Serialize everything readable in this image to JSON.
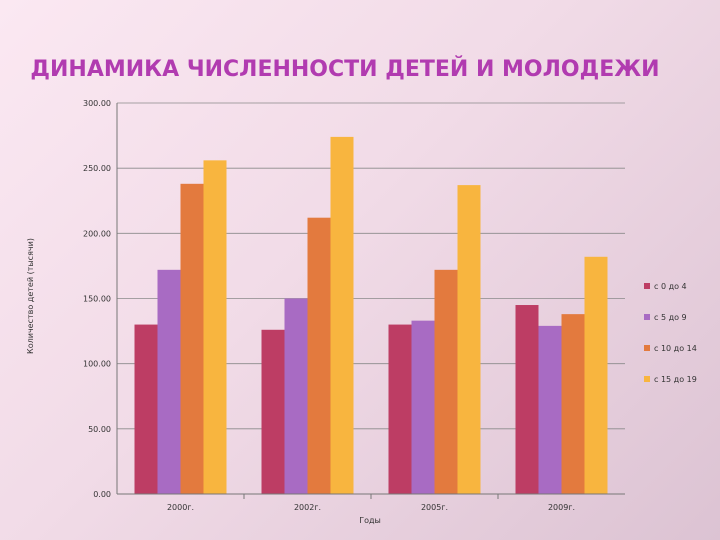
{
  "chart_data": {
    "type": "bar",
    "title": "ДИНАМИКА ЧИСЛЕННОСТИ ДЕТЕЙ И МОЛОДЕЖИ",
    "xlabel": "Годы",
    "ylabel": "Количество детей (тысячи)",
    "categories": [
      "2000г.",
      "2002г.",
      "2005г.",
      "2009г."
    ],
    "series": [
      {
        "name": "с 0 до 4",
        "values": [
          130,
          126,
          130,
          145
        ],
        "color": "#bd3d64"
      },
      {
        "name": "с 5 до 9",
        "values": [
          172,
          150,
          133,
          129
        ],
        "color": "#a86bc3"
      },
      {
        "name": "с 10 до 14",
        "values": [
          238,
          212,
          172,
          138
        ],
        "color": "#e37a3e"
      },
      {
        "name": "с 15 до 19",
        "values": [
          256,
          274,
          237,
          182
        ],
        "color": "#f8b53f"
      }
    ],
    "ylim": [
      0,
      300
    ],
    "yticks": [
      "0.00",
      "50.00",
      "100.00",
      "150.00",
      "200.00",
      "250.00",
      "300.00"
    ],
    "grid": true,
    "legend": "right",
    "title_color": "#b13bb0"
  }
}
